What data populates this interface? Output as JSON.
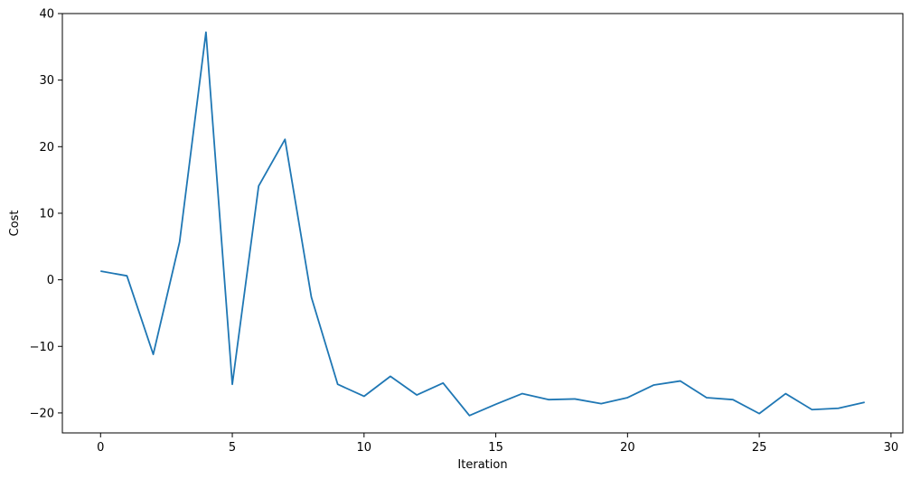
{
  "chart_data": {
    "type": "line",
    "title": "",
    "xlabel": "Iteration",
    "ylabel": "Cost",
    "xlim": [
      -1.45,
      30.45
    ],
    "ylim": [
      -23.0,
      40.0
    ],
    "xticks": [
      0,
      5,
      10,
      15,
      20,
      25,
      30
    ],
    "yticks": [
      -20,
      -10,
      0,
      10,
      20,
      30,
      40
    ],
    "xtick_labels": [
      "0",
      "5",
      "10",
      "15",
      "20",
      "25",
      "30"
    ],
    "ytick_labels": [
      "−20",
      "−10",
      "0",
      "10",
      "20",
      "30",
      "40"
    ],
    "grid": false,
    "legend": "none",
    "series": [
      {
        "color": "#1f77b4",
        "x": [
          0,
          1,
          2,
          3,
          4,
          5,
          6,
          7,
          8,
          9,
          10,
          11,
          12,
          13,
          14,
          15,
          16,
          17,
          18,
          19,
          20,
          21,
          22,
          23,
          24,
          25,
          26,
          27,
          28,
          29
        ],
        "y": [
          1.3,
          0.6,
          -11.2,
          5.7,
          37.2,
          -15.7,
          14.1,
          21.1,
          -2.6,
          -15.7,
          -17.5,
          -14.5,
          -17.3,
          -15.5,
          -20.4,
          -18.7,
          -17.1,
          -18.0,
          -17.9,
          -18.6,
          -17.7,
          -15.8,
          -15.2,
          -17.7,
          -18.0,
          -20.1,
          -17.1,
          -19.5,
          -19.3,
          -18.4
        ]
      }
    ]
  }
}
